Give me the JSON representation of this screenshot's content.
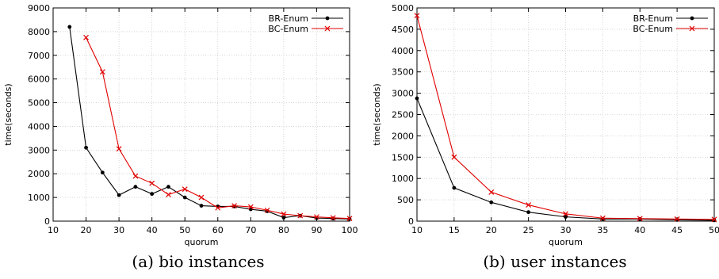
{
  "chart_data": [
    {
      "type": "line",
      "caption": "(a) bio instances",
      "xlabel": "quorum",
      "ylabel": "time(seconds)",
      "xlim": [
        10,
        100
      ],
      "ylim": [
        0,
        9000
      ],
      "xticks": [
        10,
        20,
        30,
        40,
        50,
        60,
        70,
        80,
        90,
        100
      ],
      "yticks": [
        0,
        1000,
        2000,
        3000,
        4000,
        5000,
        6000,
        7000,
        8000,
        9000
      ],
      "grid": true,
      "legend_position": "top-right",
      "series": [
        {
          "name": "BR-Enum",
          "color": "#000000",
          "marker": "dot",
          "x": [
            15,
            20,
            25,
            30,
            35,
            40,
            45,
            50,
            55,
            60,
            65,
            70,
            75,
            80,
            85,
            90,
            95,
            100
          ],
          "y": [
            8200,
            3100,
            2050,
            1100,
            1450,
            1150,
            1450,
            1000,
            650,
            620,
            620,
            500,
            420,
            150,
            230,
            130,
            110,
            90
          ]
        },
        {
          "name": "BC-Enum",
          "color": "#e00000",
          "marker": "x",
          "x": [
            20,
            25,
            30,
            35,
            40,
            45,
            50,
            55,
            60,
            65,
            70,
            75,
            80,
            85,
            90,
            95,
            100
          ],
          "y": [
            7750,
            6300,
            3050,
            1900,
            1600,
            1120,
            1350,
            1000,
            560,
            650,
            600,
            460,
            300,
            230,
            180,
            140,
            110
          ]
        }
      ]
    },
    {
      "type": "line",
      "caption": "(b) user instances",
      "xlabel": "quorum",
      "ylabel": "time(seconds)",
      "xlim": [
        10,
        50
      ],
      "ylim": [
        0,
        5000
      ],
      "xticks": [
        10,
        15,
        20,
        25,
        30,
        35,
        40,
        45,
        50
      ],
      "yticks": [
        0,
        500,
        1000,
        1500,
        2000,
        2500,
        3000,
        3500,
        4000,
        4500,
        5000
      ],
      "grid": true,
      "legend_position": "top-right",
      "series": [
        {
          "name": "BR-Enum",
          "color": "#000000",
          "marker": "dot",
          "x": [
            10,
            15,
            20,
            25,
            30,
            35,
            40,
            45,
            50
          ],
          "y": [
            2880,
            780,
            440,
            210,
            100,
            50,
            50,
            30,
            20
          ]
        },
        {
          "name": "BC-Enum",
          "color": "#e00000",
          "marker": "x",
          "x": [
            10,
            15,
            20,
            25,
            30,
            35,
            40,
            45,
            50
          ],
          "y": [
            4820,
            1500,
            680,
            380,
            170,
            70,
            60,
            50,
            40
          ]
        }
      ]
    }
  ]
}
